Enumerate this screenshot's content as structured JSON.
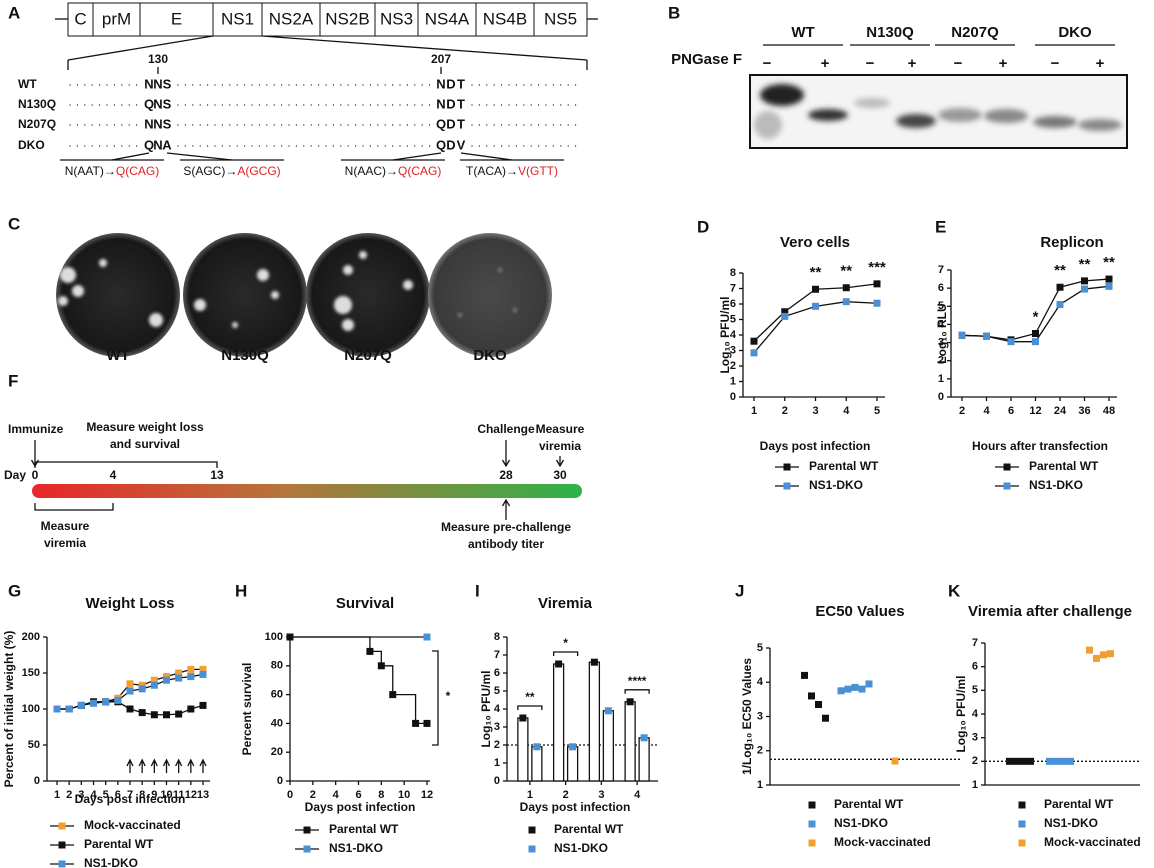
{
  "panel_a": {
    "letter": "A",
    "genome": [
      "C",
      "prM",
      "E",
      "NS1",
      "NS2A",
      "NS2B",
      "NS3",
      "NS4A",
      "NS4B",
      "NS5"
    ],
    "positions": [
      130,
      207
    ],
    "rows": [
      {
        "label": "WT",
        "site1": [
          "N",
          "N",
          "S"
        ],
        "site2": [
          "N",
          "D",
          "T"
        ]
      },
      {
        "label": "N130Q",
        "site1": [
          "Q",
          "N",
          "S"
        ],
        "site2": [
          "N",
          "D",
          "T"
        ]
      },
      {
        "label": "N207Q",
        "site1": [
          "N",
          "N",
          "S"
        ],
        "site2": [
          "Q",
          "D",
          "T"
        ]
      },
      {
        "label": "DKO",
        "site1": [
          "Q",
          "N",
          "A"
        ],
        "site2": [
          "Q",
          "D",
          "V"
        ]
      }
    ],
    "mutation_color": "#e02020",
    "notes": [
      {
        "from": "N(AAT)→",
        "to": "Q(CAG)"
      },
      {
        "from": "S(AGC)→",
        "to": "A(GCG)"
      },
      {
        "from": "N(AAC)→",
        "to": "Q(CAG)"
      },
      {
        "from": "T(ACA)→",
        "to": "V(GTT)"
      }
    ]
  },
  "panel_b": {
    "letter": "B",
    "lanes": [
      "WT",
      "N130Q",
      "N207Q",
      "DKO"
    ],
    "treatment_label": "PNGase F",
    "treatment": [
      "−",
      "+"
    ]
  },
  "panel_c": {
    "letter": "C",
    "labels": [
      "WT",
      "N130Q",
      "N207Q",
      "DKO"
    ]
  },
  "panel_f": {
    "letter": "F",
    "day_label": "Day",
    "days": [
      0,
      4,
      13,
      28,
      30
    ],
    "immunize": "Immunize",
    "weight": [
      "Measure weight loss",
      "and survival"
    ],
    "challenge": "Challenge",
    "viremia_late": [
      "Measure",
      "viremia"
    ],
    "viremia_early": [
      "Measure",
      "viremia"
    ],
    "antibody": [
      "Measure pre-challenge",
      "antibody titer"
    ]
  },
  "chart_data": [
    {
      "panel": "D",
      "type": "line",
      "title": "Vero cells",
      "y_label": "Log₁₀ PFU/ml",
      "x_label": "Days post infection",
      "categories": [
        "1",
        "2",
        "3",
        "4",
        "5"
      ],
      "ylim": [
        0,
        8
      ],
      "yticks": [
        0,
        1,
        2,
        3,
        4,
        5,
        6,
        7,
        8
      ],
      "series": [
        {
          "name": "Parental WT",
          "color": "#111111",
          "values": [
            3.6,
            5.5,
            6.95,
            7.05,
            7.3
          ]
        },
        {
          "name": "NS1-DKO",
          "color": "#4a90d4",
          "values": [
            2.85,
            5.2,
            5.85,
            6.15,
            6.05
          ]
        }
      ],
      "annotations": [
        {
          "x": "3",
          "text": "**"
        },
        {
          "x": "4",
          "text": "**"
        },
        {
          "x": "5",
          "text": "***"
        }
      ]
    },
    {
      "panel": "E",
      "type": "line",
      "title": "Replicon",
      "y_label": "Log₁₀ RLU",
      "x_label": "Hours after transfection",
      "categories": [
        "2",
        "4",
        "6",
        "12",
        "24",
        "36",
        "48"
      ],
      "ylim": [
        0,
        7
      ],
      "yticks": [
        0,
        1,
        2,
        3,
        4,
        5,
        6,
        7
      ],
      "series": [
        {
          "name": "Parental WT",
          "color": "#111111",
          "values": [
            3.4,
            3.35,
            3.15,
            3.5,
            6.05,
            6.4,
            6.5
          ]
        },
        {
          "name": "NS1-DKO",
          "color": "#4a90d4",
          "values": [
            3.4,
            3.35,
            3.05,
            3.05,
            5.1,
            5.95,
            6.1
          ]
        }
      ],
      "annotations": [
        {
          "x": "12",
          "text": "*"
        },
        {
          "x": "24",
          "text": "**"
        },
        {
          "x": "36",
          "text": "**"
        },
        {
          "x": "48",
          "text": "**"
        }
      ]
    },
    {
      "panel": "G",
      "type": "line",
      "title": "Weight Loss",
      "y_label": "Percent of initial weight (%)",
      "x_label": "Days post infection",
      "categories": [
        "1",
        "2",
        "3",
        "4",
        "5",
        "6",
        "7",
        "8",
        "9",
        "10",
        "11",
        "12",
        "13"
      ],
      "ylim": [
        0,
        200
      ],
      "yticks": [
        0,
        50,
        100,
        150,
        200
      ],
      "series": [
        {
          "name": "Mock-vaccinated",
          "color": "#f0a030",
          "values": [
            100,
            100,
            105,
            110,
            110,
            115,
            135,
            133,
            140,
            145,
            150,
            155,
            155
          ]
        },
        {
          "name": "Parental WT",
          "color": "#111111",
          "values": [
            100,
            100,
            105,
            110,
            110,
            110,
            100,
            95,
            92,
            92,
            93,
            100,
            105
          ]
        },
        {
          "name": "NS1-DKO",
          "color": "#4a90d4",
          "values": [
            100,
            100,
            105,
            108,
            110,
            112,
            125,
            128,
            133,
            140,
            143,
            145,
            148
          ]
        }
      ],
      "arrows": [
        7,
        8,
        9,
        10,
        11,
        12,
        13
      ]
    },
    {
      "panel": "H",
      "type": "step",
      "title": "Survival",
      "y_label": "Percent survival",
      "x_label": "Days post infection",
      "xlim": [
        0,
        12
      ],
      "xticks": [
        0,
        2,
        4,
        6,
        8,
        10,
        12
      ],
      "ylim": [
        0,
        100
      ],
      "yticks": [
        0,
        20,
        40,
        60,
        80,
        100
      ],
      "series": [
        {
          "name": "Parental WT",
          "color": "#111111",
          "x": [
            0,
            7,
            8,
            9,
            11,
            12
          ],
          "values": [
            100,
            90,
            80,
            60,
            40,
            40
          ]
        },
        {
          "name": "NS1-DKO",
          "color": "#4a90d4",
          "x": [
            0,
            12
          ],
          "values": [
            100,
            100
          ]
        }
      ],
      "annotations": [
        {
          "text": "*"
        }
      ]
    },
    {
      "panel": "I",
      "type": "bar",
      "title": "Viremia",
      "y_label": "Log₁₀ PFU/ml",
      "x_label": "Days post infection",
      "categories": [
        "1",
        "2",
        "3",
        "4"
      ],
      "ylim": [
        0,
        8
      ],
      "yticks": [
        0,
        1,
        2,
        3,
        4,
        5,
        6,
        7,
        8
      ],
      "lod": 2,
      "series": [
        {
          "name": "Parental WT",
          "color": "#111111",
          "values": [
            3.5,
            6.5,
            6.6,
            4.4
          ]
        },
        {
          "name": "NS1-DKO",
          "color": "#4a90d4",
          "values": [
            1.9,
            1.9,
            3.9,
            2.4
          ]
        }
      ],
      "annotations": [
        {
          "x": "1",
          "text": "**"
        },
        {
          "x": "2",
          "text": "*"
        },
        {
          "x": "4",
          "text": "****"
        }
      ]
    },
    {
      "panel": "J",
      "type": "scatter",
      "title": "EC50 Values",
      "y_label": "1/Log₁₀ EC50 Values",
      "ylim": [
        1,
        5
      ],
      "yticks": [
        1,
        2,
        3,
        4,
        5
      ],
      "lod": 1.75,
      "series": [
        {
          "name": "Parental WT",
          "color": "#111111",
          "values": [
            4.2,
            3.6,
            3.35,
            2.95
          ]
        },
        {
          "name": "NS1-DKO",
          "color": "#4a90d4",
          "values": [
            3.75,
            3.8,
            3.85,
            3.8,
            3.95
          ]
        },
        {
          "name": "Mock-vaccinated",
          "color": "#f0a030",
          "values": [
            1.7
          ]
        }
      ]
    },
    {
      "panel": "K",
      "type": "scatter",
      "title": "Viremia after challenge",
      "y_label": "Log₁₀ PFU/ml",
      "ylim": [
        1,
        7
      ],
      "yticks": [
        1,
        2,
        3,
        4,
        5,
        6,
        7
      ],
      "lod": 2,
      "series": [
        {
          "name": "Parental WT",
          "color": "#111111",
          "values": [
            2,
            2,
            2,
            2
          ]
        },
        {
          "name": "NS1-DKO",
          "color": "#4a90d4",
          "values": [
            2,
            2,
            2,
            2
          ]
        },
        {
          "name": "Mock-vaccinated",
          "color": "#f0a030",
          "values": [
            6.7,
            6.35,
            6.5,
            6.55
          ]
        }
      ]
    }
  ]
}
